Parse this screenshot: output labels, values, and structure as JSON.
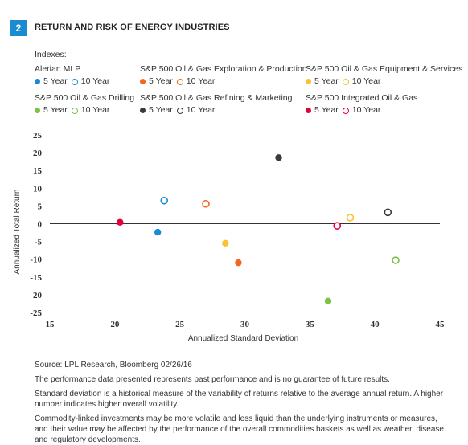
{
  "figure": {
    "number": "2",
    "title": "RETURN AND RISK OF ENERGY INDUSTRIES"
  },
  "legend": {
    "heading": "Indexes:",
    "five_year_label": "5 Year",
    "ten_year_label": "10 Year",
    "groups": [
      {
        "name": "Alerian MLP",
        "color": "#1a8bd1"
      },
      {
        "name": "S&P 500 Oil & Gas Exploration & Production",
        "color": "#f26522"
      },
      {
        "name": "S&P 500 Oil & Gas Equipment & Services",
        "color": "#fcc032"
      },
      {
        "name": "S&P 500 Oil & Gas Drilling",
        "color": "#7dc243"
      },
      {
        "name": "S&P 500 Oil & Gas Refining & Marketing",
        "color": "#3a3a3a"
      },
      {
        "name": "S&P 500 Integrated Oil & Gas",
        "color": "#e4003b"
      }
    ]
  },
  "chart_data": {
    "type": "scatter",
    "xlabel": "Annualized Standard Deviation",
    "ylabel": "Annualized Total Return",
    "xlim": [
      15,
      45
    ],
    "ylim": [
      -25,
      25
    ],
    "x_ticks": [
      15,
      20,
      25,
      30,
      35,
      40,
      45
    ],
    "y_ticks": [
      25,
      20,
      15,
      10,
      5,
      0,
      -5,
      -10,
      -15,
      -20,
      -25
    ],
    "grid": false,
    "zero_line": true,
    "series": [
      {
        "name": "Alerian MLP",
        "color": "#1a8bd1",
        "five_year": {
          "x": 23.3,
          "y": -2.4
        },
        "ten_year": {
          "x": 23.8,
          "y": 6.5
        }
      },
      {
        "name": "S&P 500 Oil & Gas Exploration & Production",
        "color": "#f26522",
        "five_year": {
          "x": 29.5,
          "y": -11.0
        },
        "ten_year": {
          "x": 27.0,
          "y": 5.6
        }
      },
      {
        "name": "S&P 500 Oil & Gas Equipment & Services",
        "color": "#fcc032",
        "five_year": {
          "x": 28.5,
          "y": -5.5
        },
        "ten_year": {
          "x": 38.1,
          "y": 1.7
        }
      },
      {
        "name": "S&P 500 Oil & Gas Drilling",
        "color": "#7dc243",
        "five_year": {
          "x": 36.4,
          "y": -21.8
        },
        "ten_year": {
          "x": 41.6,
          "y": -10.3
        }
      },
      {
        "name": "S&P 500 Oil & Gas Refining & Marketing",
        "color": "#3a3a3a",
        "five_year": {
          "x": 32.6,
          "y": 18.6
        },
        "ten_year": {
          "x": 41.0,
          "y": 3.2
        }
      },
      {
        "name": "S&P 500 Integrated Oil & Gas",
        "color": "#e4003b",
        "five_year": {
          "x": 20.4,
          "y": 0.4
        },
        "ten_year": {
          "x": 37.1,
          "y": -0.6
        }
      }
    ]
  },
  "notes": {
    "source": "Source: LPL Research, Bloomberg  02/26/16",
    "line1": "The performance data presented represents past performance and is no guarantee of future results.",
    "line2": "Standard deviation is a historical measure of the variability of returns relative to the average annual return. A higher number indicates higher overall volatility.",
    "line3": "Commodity-linked investments may be more volatile and less liquid than the underlying instruments or measures, and their value may be affected by the performance of the overall commodities baskets as well as weather, disease, and regulatory developments."
  }
}
